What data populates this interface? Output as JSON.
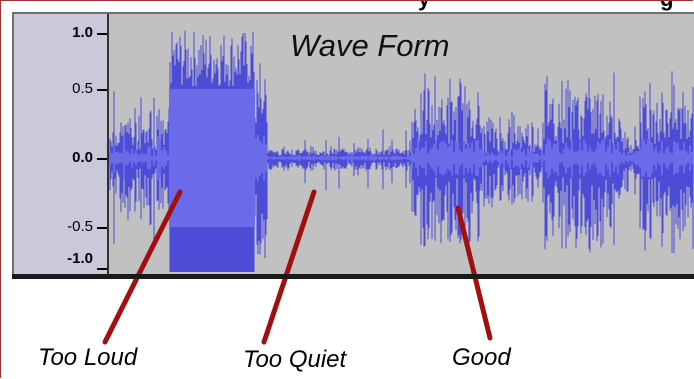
{
  "waveform": {
    "title": "Wave Form",
    "amplitude_labels": [
      "1.0",
      "0.5",
      "0.0",
      "-0.5",
      "-1.0"
    ],
    "colors": {
      "wave": "#4c4cd6",
      "background": "#c1c1c1",
      "ruler": "#c9c9d9",
      "callout_line": "#a01010"
    }
  },
  "annotations": {
    "too_loud": "Too Loud",
    "too_quiet": "Too Quiet",
    "good": "Good"
  }
}
